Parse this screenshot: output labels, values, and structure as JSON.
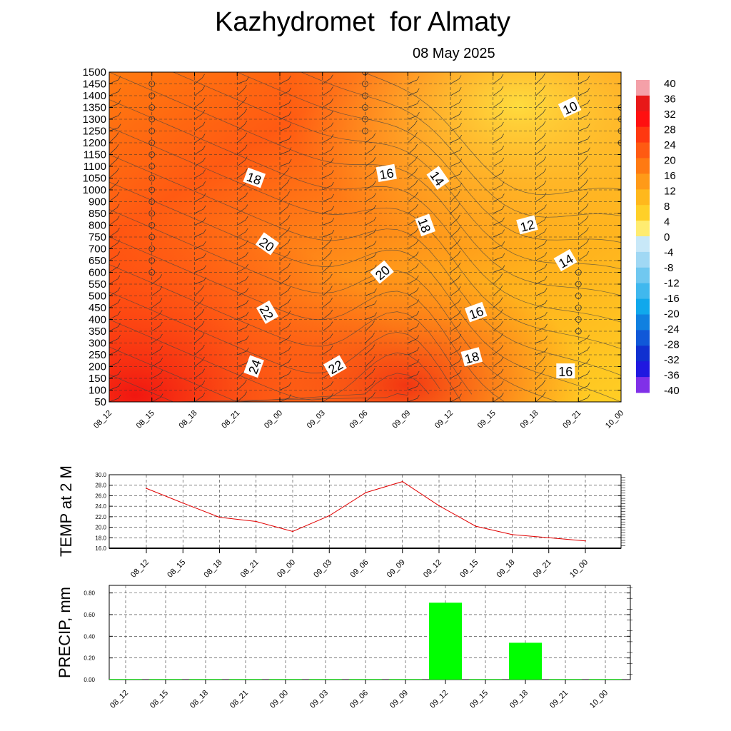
{
  "header": {
    "title": "Kazhydromet  for Almaty",
    "date": "08 May 2025"
  },
  "chart_data": [
    {
      "type": "heatmap",
      "title": "Kazhydromet  for Almaty",
      "subtitle": "08 May 2025",
      "x": [
        "08_12",
        "08_15",
        "08_18",
        "08_21",
        "09_00",
        "09_03",
        "09_06",
        "09_09",
        "09_12",
        "09_15",
        "09_18",
        "09_21",
        "10_00"
      ],
      "y_levels": [
        50,
        100,
        150,
        200,
        250,
        300,
        350,
        400,
        450,
        500,
        550,
        600,
        650,
        700,
        750,
        800,
        850,
        900,
        1000,
        1050,
        1100,
        1150,
        1200,
        1250,
        1300,
        1350,
        1400,
        1450,
        1500
      ],
      "colorbar": {
        "ticks": [
          40,
          36,
          32,
          28,
          24,
          20,
          16,
          12,
          8,
          4,
          0,
          -4,
          -8,
          -12,
          -16,
          -20,
          -24,
          -28,
          -32,
          -36,
          -40
        ],
        "range": [
          -40,
          40
        ]
      },
      "contour_labels": [
        {
          "label": "18",
          "x": 3.4,
          "level": 1050
        },
        {
          "label": "16",
          "x": 6.5,
          "level": 1070
        },
        {
          "label": "14",
          "x": 7.7,
          "level": 1050
        },
        {
          "label": "10",
          "x": 10.8,
          "level": 1350
        },
        {
          "label": "20",
          "x": 3.7,
          "level": 720
        },
        {
          "label": "18",
          "x": 7.4,
          "level": 800
        },
        {
          "label": "12",
          "x": 9.8,
          "level": 800
        },
        {
          "label": "20",
          "x": 6.4,
          "level": 600
        },
        {
          "label": "14",
          "x": 10.7,
          "level": 650
        },
        {
          "label": "22",
          "x": 3.7,
          "level": 430
        },
        {
          "label": "16",
          "x": 8.6,
          "level": 430
        },
        {
          "label": "24",
          "x": 3.4,
          "level": 200
        },
        {
          "label": "22",
          "x": 5.3,
          "level": 200
        },
        {
          "label": "18",
          "x": 8.5,
          "level": 240
        },
        {
          "label": "16",
          "x": 10.7,
          "level": 180
        }
      ],
      "grid": true
    },
    {
      "type": "line",
      "ylabel": "TEMP at 2 M",
      "x": [
        "08_12",
        "08_15",
        "08_18",
        "08_21",
        "09_00",
        "09_03",
        "09_06",
        "09_09",
        "09_12",
        "09_15",
        "09_18",
        "09_21",
        "10_00"
      ],
      "values": [
        27.4,
        24.6,
        21.9,
        21.1,
        19.2,
        22.2,
        26.6,
        28.7,
        24.1,
        20.2,
        18.6,
        18.0,
        17.4
      ],
      "yticks": [
        "30.0",
        "28.0",
        "26.0",
        "24.0",
        "22.0",
        "20.0",
        "18.0",
        "16.0"
      ],
      "ylim": [
        16,
        30
      ],
      "color": "#e00000",
      "grid": true
    },
    {
      "type": "bar",
      "ylabel": "PRECIP, mm",
      "categories": [
        "08_12",
        "08_15",
        "08_18",
        "08_21",
        "09_00",
        "09_03",
        "09_06",
        "09_09",
        "09_12",
        "09_15",
        "09_18",
        "09_21",
        "10_00"
      ],
      "values": [
        0,
        0,
        0,
        0,
        0,
        0,
        0,
        0,
        0.71,
        0,
        0.34,
        0,
        0
      ],
      "yticks": [
        "0.00",
        "0.20",
        "0.40",
        "0.60",
        "0.80"
      ],
      "ylim": [
        0,
        0.87
      ],
      "color": "#00ff00",
      "grid": true
    }
  ]
}
